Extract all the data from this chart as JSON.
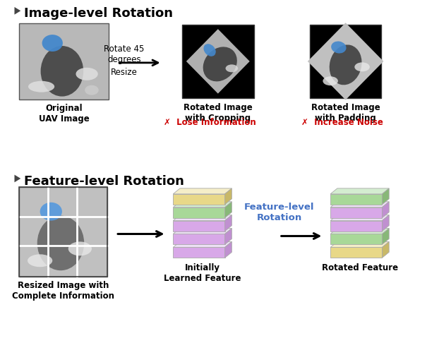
{
  "title_top": "Image-level Rotation",
  "title_bottom": "Feature-level Rotation",
  "label_original": "Original\nUAV Image",
  "label_cropping": "Rotated Image\nwith Cropping",
  "label_padding": "Rotated Image\nwith Padding",
  "label_lose": "✗  Lose Information",
  "label_noise": "✗  Increase Noise",
  "label_resized": "Resized Image with\nComplete Information",
  "label_initial": "Initially\nLearned Feature",
  "label_rotated": "Rotated Feature",
  "label_feature_rotation": "Feature-level\nRotation",
  "bg_color": "#ffffff",
  "text_color": "#000000",
  "red_color": "#cc0000",
  "blue_color": "#4472c4",
  "section_header_color": "#000000",
  "purple_face": "#d8a8e8",
  "purple_top": "#ede0f5",
  "purple_right": "#c090d0",
  "green_face": "#a8d898",
  "green_top": "#d4edd0",
  "green_right": "#88b878",
  "yellow_face": "#e8d888",
  "yellow_top": "#f5eec8",
  "yellow_right": "#c8b868"
}
